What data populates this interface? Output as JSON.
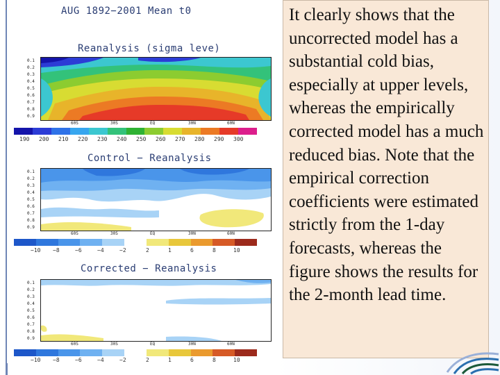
{
  "figure": {
    "title": "AUG 1892−2001 Mean t0",
    "panels": [
      {
        "title": "Reanalysis (sigma leve)",
        "y_ticks": [
          "0.1",
          "0.2",
          "0.3",
          "0.4",
          "0.5",
          "0.6",
          "0.7",
          "0.8",
          "0.9"
        ],
        "x_ticks": [
          "60S",
          "30S",
          "EQ",
          "30N",
          "60N"
        ],
        "colorbar_labels": [
          "190",
          "200",
          "210",
          "220",
          "230",
          "240",
          "250",
          "260",
          "270",
          "280",
          "290",
          "300"
        ]
      },
      {
        "title": "Control − Reanalysis",
        "y_ticks": [
          "0.1",
          "0.2",
          "0.3",
          "0.4",
          "0.5",
          "0.6",
          "0.7",
          "0.8",
          "0.9"
        ],
        "x_ticks": [
          "60S",
          "30S",
          "EQ",
          "30N",
          "60N"
        ],
        "colorbar_labels": [
          "−10",
          "−8",
          "−6",
          "−4",
          "−2",
          "2",
          "1",
          "6",
          "8",
          "10"
        ]
      },
      {
        "title": "Corrected − Reanalysis",
        "y_ticks": [
          "0.1",
          "0.2",
          "0.3",
          "0.4",
          "0.5",
          "0.6",
          "0.7",
          "0.8",
          "0.9"
        ],
        "x_ticks": [
          "60S",
          "30S",
          "EQ",
          "30N",
          "60N"
        ],
        "colorbar_labels": [
          "−10",
          "−8",
          "−6",
          "−4",
          "−2",
          "2",
          "1",
          "6",
          "8",
          "10"
        ]
      }
    ],
    "colors": {
      "temp_scale": [
        "#1414aa",
        "#2c3cd6",
        "#2f72e8",
        "#37a6ef",
        "#3cc7d0",
        "#33c27a",
        "#2fb233",
        "#8ccc30",
        "#d8dc32",
        "#e8b42a",
        "#ec7a24",
        "#e63a28",
        "#dc1e8c"
      ],
      "anomaly_scale": [
        "#1d57c9",
        "#2f77dd",
        "#4a95ea",
        "#6fb1f1",
        "#a8d3f6",
        "#ffffff",
        "#f1e87a",
        "#e8c73b",
        "#ea9a2e",
        "#d65a26",
        "#9c2a1c"
      ]
    }
  },
  "body_text": "It clearly shows that the uncorrected model has a substantial cold bias, especially at upper levels, whereas the empirically corrected model has a much reduced bias. Note that the empirical correction coefficients were estimated strictly from the 1-day forecasts, whereas the figure shows the results for the 2-month lead time."
}
